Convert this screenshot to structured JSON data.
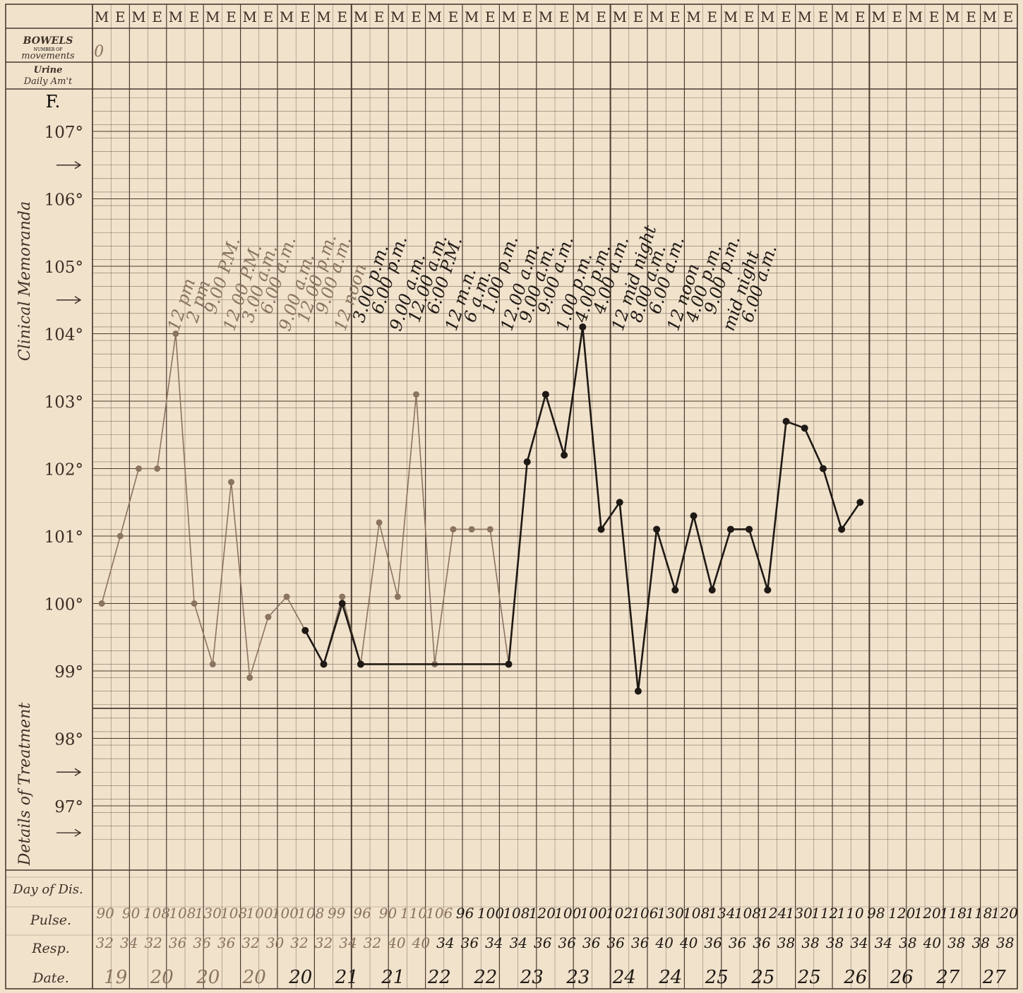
{
  "header": {
    "m_label": "M",
    "e_label": "E"
  },
  "rows": {
    "bowels_title": "BOWELS",
    "bowels_sub": "NUMBER OF",
    "bowels_sub2": "movements",
    "urine_title": "Urine",
    "urine_sub": "Daily Am't",
    "bowels_first_value": "0"
  },
  "axis": {
    "unit": "F.",
    "clinical_label": "Clinical Memoranda",
    "treatment_label": "Details of Treatment"
  },
  "bottom_rows": {
    "day_of_dis": "Day of Dis.",
    "pulse": "Pulse.",
    "resp": "Resp.",
    "date": "Date."
  },
  "colors": {
    "paper": "#f1e2cc",
    "grid": "#4a3b30",
    "ink_dark": "#1e1914",
    "ink_faint": "#8a7360"
  },
  "chart_data": {
    "type": "line",
    "title": "",
    "xlabel": "",
    "ylabel": "F.",
    "ylim": [
      96.5,
      107.5
    ],
    "yticks": [
      {
        "value": 107,
        "label": "107°"
      },
      {
        "value": 106,
        "label": "106°"
      },
      {
        "value": 105,
        "label": "105°"
      },
      {
        "value": 104,
        "label": "104°"
      },
      {
        "value": 103,
        "label": "103°"
      },
      {
        "value": 102,
        "label": "102°"
      },
      {
        "value": 101,
        "label": "101°"
      },
      {
        "value": 100,
        "label": "100°"
      },
      {
        "value": 99,
        "label": "99°"
      },
      {
        "value": 98,
        "label": "98°"
      },
      {
        "value": 97,
        "label": "97°"
      }
    ],
    "column_labels": [
      "M",
      "E",
      "M",
      "E",
      "M",
      "E",
      "M",
      "E",
      "M",
      "E",
      "M",
      "E",
      "M",
      "E",
      "M",
      "E",
      "M",
      "E",
      "M",
      "E",
      "M",
      "E",
      "M",
      "E",
      "M",
      "E",
      "M",
      "E",
      "M",
      "E",
      "M",
      "E",
      "M",
      "E",
      "M",
      "E",
      "M",
      "E",
      "M",
      "E",
      "M",
      "E",
      "M",
      "E",
      "M",
      "E",
      "M",
      "E",
      "M",
      "E"
    ],
    "series": [
      {
        "style": "faint",
        "points": [
          {
            "x": 0,
            "y": 100.0
          },
          {
            "x": 1,
            "y": 101.0
          },
          {
            "x": 2,
            "y": 102.0
          },
          {
            "x": 3,
            "y": 102.0
          },
          {
            "x": 4,
            "y": 104.0
          },
          {
            "x": 5,
            "y": 100.0
          },
          {
            "x": 6,
            "y": 99.1
          },
          {
            "x": 7,
            "y": 101.8
          },
          {
            "x": 8,
            "y": 98.9
          },
          {
            "x": 9,
            "y": 99.8
          },
          {
            "x": 10,
            "y": 100.1
          },
          {
            "x": 11,
            "y": 99.6
          },
          {
            "x": 12,
            "y": 99.1
          },
          {
            "x": 13,
            "y": 100.1
          },
          {
            "x": 14,
            "y": 99.1
          },
          {
            "x": 15,
            "y": 101.2
          },
          {
            "x": 16,
            "y": 100.1
          },
          {
            "x": 17,
            "y": 103.1
          },
          {
            "x": 18,
            "y": 99.1
          },
          {
            "x": 19,
            "y": 101.1
          },
          {
            "x": 20,
            "y": 101.1
          },
          {
            "x": 21,
            "y": 101.1
          },
          {
            "x": 22,
            "y": 99.1
          }
        ]
      },
      {
        "style": "dark",
        "points": [
          {
            "x": 11,
            "y": 99.6
          },
          {
            "x": 12,
            "y": 99.1
          },
          {
            "x": 13,
            "y": 100.0
          },
          {
            "x": 14,
            "y": 99.1
          },
          {
            "x": 22,
            "y": 99.1
          },
          {
            "x": 23,
            "y": 102.1
          },
          {
            "x": 24,
            "y": 103.1
          },
          {
            "x": 25,
            "y": 102.2
          },
          {
            "x": 26,
            "y": 104.1
          },
          {
            "x": 27,
            "y": 101.1
          },
          {
            "x": 28,
            "y": 101.5
          },
          {
            "x": 29,
            "y": 98.7
          },
          {
            "x": 30,
            "y": 101.1
          },
          {
            "x": 31,
            "y": 100.2
          },
          {
            "x": 32,
            "y": 101.3
          },
          {
            "x": 33,
            "y": 100.2
          },
          {
            "x": 34,
            "y": 101.1
          },
          {
            "x": 35,
            "y": 101.1
          },
          {
            "x": 36,
            "y": 100.2
          },
          {
            "x": 37,
            "y": 102.7
          },
          {
            "x": 38,
            "y": 102.6
          },
          {
            "x": 39,
            "y": 102.0
          },
          {
            "x": 40,
            "y": 101.1
          },
          {
            "x": 41,
            "y": 101.5
          }
        ]
      }
    ],
    "time_annotations": [
      {
        "col": 4,
        "text": "12 pm"
      },
      {
        "col": 5,
        "text": "2 pm"
      },
      {
        "col": 6,
        "text": "9.00 P.M."
      },
      {
        "col": 7,
        "text": "12.00 P.M."
      },
      {
        "col": 8,
        "text": "3.00 a.m."
      },
      {
        "col": 9,
        "text": "6.00 a.m."
      },
      {
        "col": 10,
        "text": "9.00 a.m."
      },
      {
        "col": 11,
        "text": "12.00 p.m."
      },
      {
        "col": 12,
        "text": "9.00 a.m."
      },
      {
        "col": 13,
        "text": "12 noon"
      },
      {
        "col": 14,
        "text": "3.00 p.m."
      },
      {
        "col": 15,
        "text": "6.00 p.m."
      },
      {
        "col": 16,
        "text": "9.00 a.m."
      },
      {
        "col": 17,
        "text": "12.00 a.m."
      },
      {
        "col": 18,
        "text": "6:00 P.M."
      },
      {
        "col": 19,
        "text": "12 m.n."
      },
      {
        "col": 20,
        "text": "6 a.m."
      },
      {
        "col": 21,
        "text": "1.00 p.m."
      },
      {
        "col": 22,
        "text": "12.00 a.m."
      },
      {
        "col": 23,
        "text": "9.00 a.m."
      },
      {
        "col": 24,
        "text": "9:00 a.m."
      },
      {
        "col": 25,
        "text": "1.00 p.m."
      },
      {
        "col": 26,
        "text": "4.00 p.m."
      },
      {
        "col": 27,
        "text": "4.00 a.m."
      },
      {
        "col": 28,
        "text": "12 mid night"
      },
      {
        "col": 29,
        "text": "8.00 a.m."
      },
      {
        "col": 30,
        "text": "6.00 a.m."
      },
      {
        "col": 31,
        "text": "12 noon"
      },
      {
        "col": 32,
        "text": "4.00 p.m."
      },
      {
        "col": 33,
        "text": "9.00 p.m."
      },
      {
        "col": 34,
        "text": "mid night"
      },
      {
        "col": 35,
        "text": "6.00 a.m."
      }
    ],
    "pulse": [
      "90",
      "90",
      "108",
      "108",
      "130",
      "108",
      "100",
      "100",
      "108",
      "99",
      "96",
      "90",
      "110",
      "106",
      "96",
      "100",
      "108",
      "120",
      "100",
      "100",
      "102",
      "106",
      "130",
      "108",
      "134",
      "108",
      "124",
      "130",
      "112",
      "110",
      "98",
      "120",
      "120",
      "118",
      "118",
      "120"
    ],
    "resp": [
      "32",
      "34",
      "32",
      "36",
      "36",
      "36",
      "32",
      "30",
      "32",
      "32",
      "34",
      "32",
      "40",
      "40",
      "34",
      "36",
      "34",
      "34",
      "36",
      "36",
      "36",
      "36",
      "36",
      "40",
      "40",
      "36",
      "36",
      "36",
      "38",
      "38",
      "38",
      "34",
      "34",
      "38",
      "40",
      "38",
      "38",
      "38"
    ],
    "dates": [
      {
        "col": 0,
        "text": "19"
      },
      {
        "col": 1,
        "text": "20"
      },
      {
        "col": 2,
        "text": "20"
      },
      {
        "col": 3,
        "text": "20"
      },
      {
        "col": 4,
        "text": "20"
      },
      {
        "col": 5,
        "text": "21"
      },
      {
        "col": 6,
        "text": "21"
      },
      {
        "col": 7,
        "text": "22"
      },
      {
        "col": 8,
        "text": "22"
      },
      {
        "col": 9,
        "text": "23"
      },
      {
        "col": 10,
        "text": "23"
      },
      {
        "col": 11,
        "text": "24"
      },
      {
        "col": 12,
        "text": "24"
      },
      {
        "col": 13,
        "text": "25"
      },
      {
        "col": 14,
        "text": "25"
      },
      {
        "col": 15,
        "text": "25"
      },
      {
        "col": 16,
        "text": "26"
      },
      {
        "col": 17,
        "text": "26"
      },
      {
        "col": 18,
        "text": "27"
      },
      {
        "col": 19,
        "text": "27"
      }
    ],
    "grid": true
  }
}
